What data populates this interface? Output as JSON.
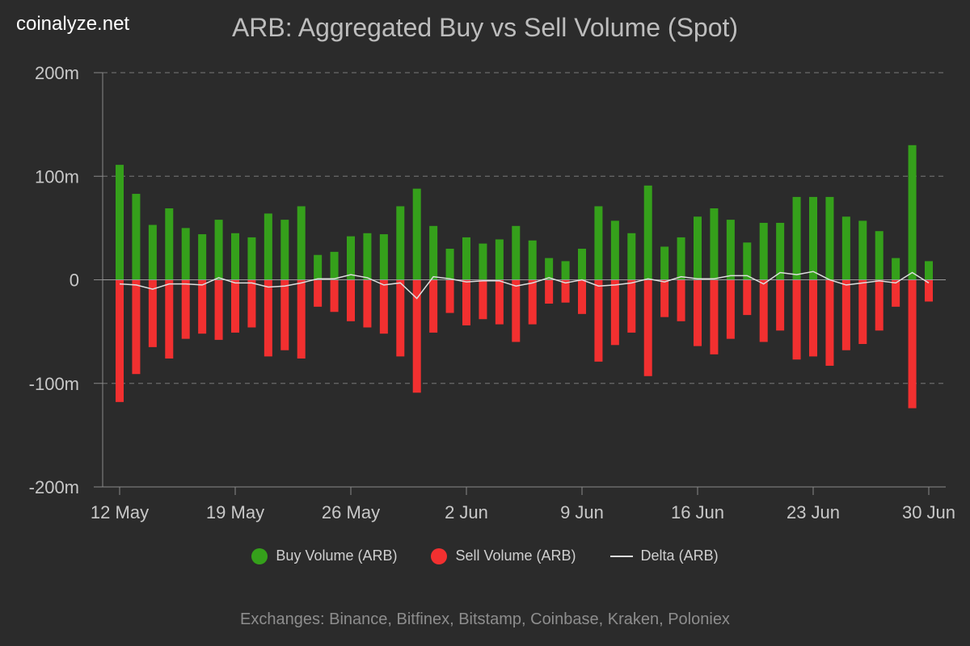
{
  "brand": "coinalyze.net",
  "title": "ARB: Aggregated Buy vs Sell Volume (Spot)",
  "footer": "Exchanges: Binance, Bitfinex, Bitstamp, Coinbase, Kraken, Poloniex",
  "colors": {
    "background": "#2b2b2b",
    "buy": "#35a01b",
    "sell": "#f23030",
    "delta": "#dddddd",
    "grid": "#6a6a6a"
  },
  "chart_data": {
    "type": "bar",
    "ylim": [
      -200,
      200
    ],
    "y_unit": "m",
    "y_ticks": [
      {
        "value": 200,
        "label": "200m"
      },
      {
        "value": 100,
        "label": "100m"
      },
      {
        "value": 0,
        "label": "0"
      },
      {
        "value": -100,
        "label": "-100m"
      },
      {
        "value": -200,
        "label": "-200m"
      }
    ],
    "x_ticks": [
      {
        "index": 0,
        "label": "12 May"
      },
      {
        "index": 7,
        "label": "19 May"
      },
      {
        "index": 14,
        "label": "26 May"
      },
      {
        "index": 21,
        "label": "2 Jun"
      },
      {
        "index": 28,
        "label": "9 Jun"
      },
      {
        "index": 35,
        "label": "16 Jun"
      },
      {
        "index": 42,
        "label": "23 Jun"
      },
      {
        "index": 49,
        "label": "30 Jun"
      }
    ],
    "grid": true,
    "legend_position": "bottom",
    "categories": [
      "12 May",
      "13 May",
      "14 May",
      "15 May",
      "16 May",
      "17 May",
      "18 May",
      "19 May",
      "20 May",
      "21 May",
      "22 May",
      "23 May",
      "24 May",
      "25 May",
      "26 May",
      "27 May",
      "28 May",
      "29 May",
      "30 May",
      "31 May",
      "1 Jun",
      "2 Jun",
      "3 Jun",
      "4 Jun",
      "5 Jun",
      "6 Jun",
      "7 Jun",
      "8 Jun",
      "9 Jun",
      "10 Jun",
      "11 Jun",
      "12 Jun",
      "13 Jun",
      "14 Jun",
      "15 Jun",
      "16 Jun",
      "17 Jun",
      "18 Jun",
      "19 Jun",
      "20 Jun",
      "21 Jun",
      "22 Jun",
      "23 Jun",
      "24 Jun",
      "25 Jun",
      "26 Jun",
      "27 Jun",
      "28 Jun",
      "29 Jun",
      "30 Jun"
    ],
    "series": [
      {
        "name": "Buy Volume (ARB)",
        "kind": "bar",
        "values": [
          111,
          83,
          53,
          69,
          50,
          44,
          58,
          45,
          41,
          64,
          58,
          71,
          24,
          27,
          42,
          45,
          44,
          71,
          88,
          52,
          30,
          41,
          35,
          39,
          52,
          38,
          21,
          18,
          30,
          71,
          57,
          45,
          91,
          32,
          41,
          61,
          69,
          58,
          36,
          55,
          55,
          80,
          80,
          80,
          61,
          57,
          47,
          21,
          130,
          18
        ]
      },
      {
        "name": "Sell Volume (ARB)",
        "kind": "bar",
        "values": [
          -118,
          -91,
          -65,
          -76,
          -57,
          -52,
          -58,
          -51,
          -46,
          -74,
          -68,
          -76,
          -26,
          -31,
          -40,
          -46,
          -52,
          -74,
          -109,
          -51,
          -32,
          -44,
          -38,
          -43,
          -60,
          -43,
          -23,
          -22,
          -33,
          -79,
          -63,
          -51,
          -93,
          -36,
          -40,
          -64,
          -72,
          -57,
          -34,
          -60,
          -49,
          -77,
          -74,
          -83,
          -68,
          -62,
          -49,
          -26,
          -124,
          -21
        ]
      },
      {
        "name": "Delta (ARB)",
        "kind": "line",
        "values": [
          -4,
          -5,
          -9,
          -4,
          -4,
          -5,
          2,
          -3,
          -3,
          -7,
          -6,
          -3,
          1,
          1,
          5,
          2,
          -5,
          -3,
          -18,
          3,
          1,
          -2,
          -1,
          -1,
          -6,
          -3,
          2,
          -3,
          0,
          -6,
          -5,
          -3,
          1,
          -2,
          3,
          1,
          1,
          4,
          4,
          -4,
          7,
          5,
          8,
          0,
          -5,
          -3,
          -1,
          -3,
          7,
          -3
        ]
      }
    ]
  }
}
